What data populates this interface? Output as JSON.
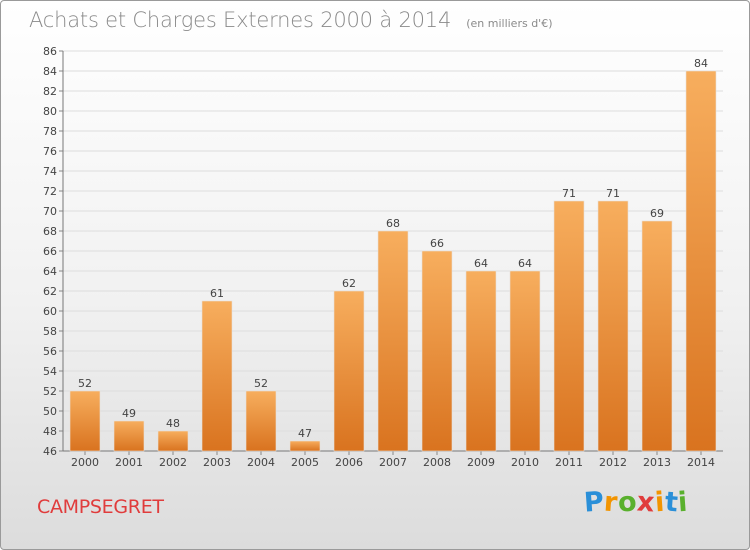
{
  "title": "Achats et Charges Externes 2000 à 2014",
  "subtitle": "(en milliers d'€)",
  "commune": "CAMPSEGRET",
  "logo": {
    "letters": [
      "P",
      "r",
      "o",
      "x",
      "i",
      "t",
      "i"
    ],
    "colors": [
      "#2a8fd8",
      "#f29400",
      "#59b02d",
      "#e03c3c",
      "#f29400",
      "#2a8fd8",
      "#59b02d"
    ]
  },
  "colors": {
    "bar": "#f0943d",
    "bar_light": "#f7ae5e",
    "bar_dark": "#d9731f",
    "title": "#8a8a8a",
    "commune": "#e03c3c",
    "grid": "#dddddd"
  },
  "chart_data": {
    "type": "bar",
    "title": "Achats et Charges Externes 2000 à 2014",
    "subtitle": "(en milliers d'€)",
    "categories": [
      "2000",
      "2001",
      "2002",
      "2003",
      "2004",
      "2005",
      "2006",
      "2007",
      "2008",
      "2009",
      "2010",
      "2011",
      "2012",
      "2013",
      "2014"
    ],
    "values": [
      52,
      49,
      48,
      61,
      52,
      47,
      62,
      68,
      66,
      64,
      64,
      71,
      71,
      69,
      84
    ],
    "ylim": [
      46,
      86
    ],
    "yticks": [
      46,
      48,
      50,
      52,
      54,
      56,
      58,
      60,
      62,
      64,
      66,
      68,
      70,
      72,
      74,
      76,
      78,
      80,
      82,
      84,
      86
    ],
    "grid": true,
    "xlabel": "",
    "ylabel": ""
  }
}
